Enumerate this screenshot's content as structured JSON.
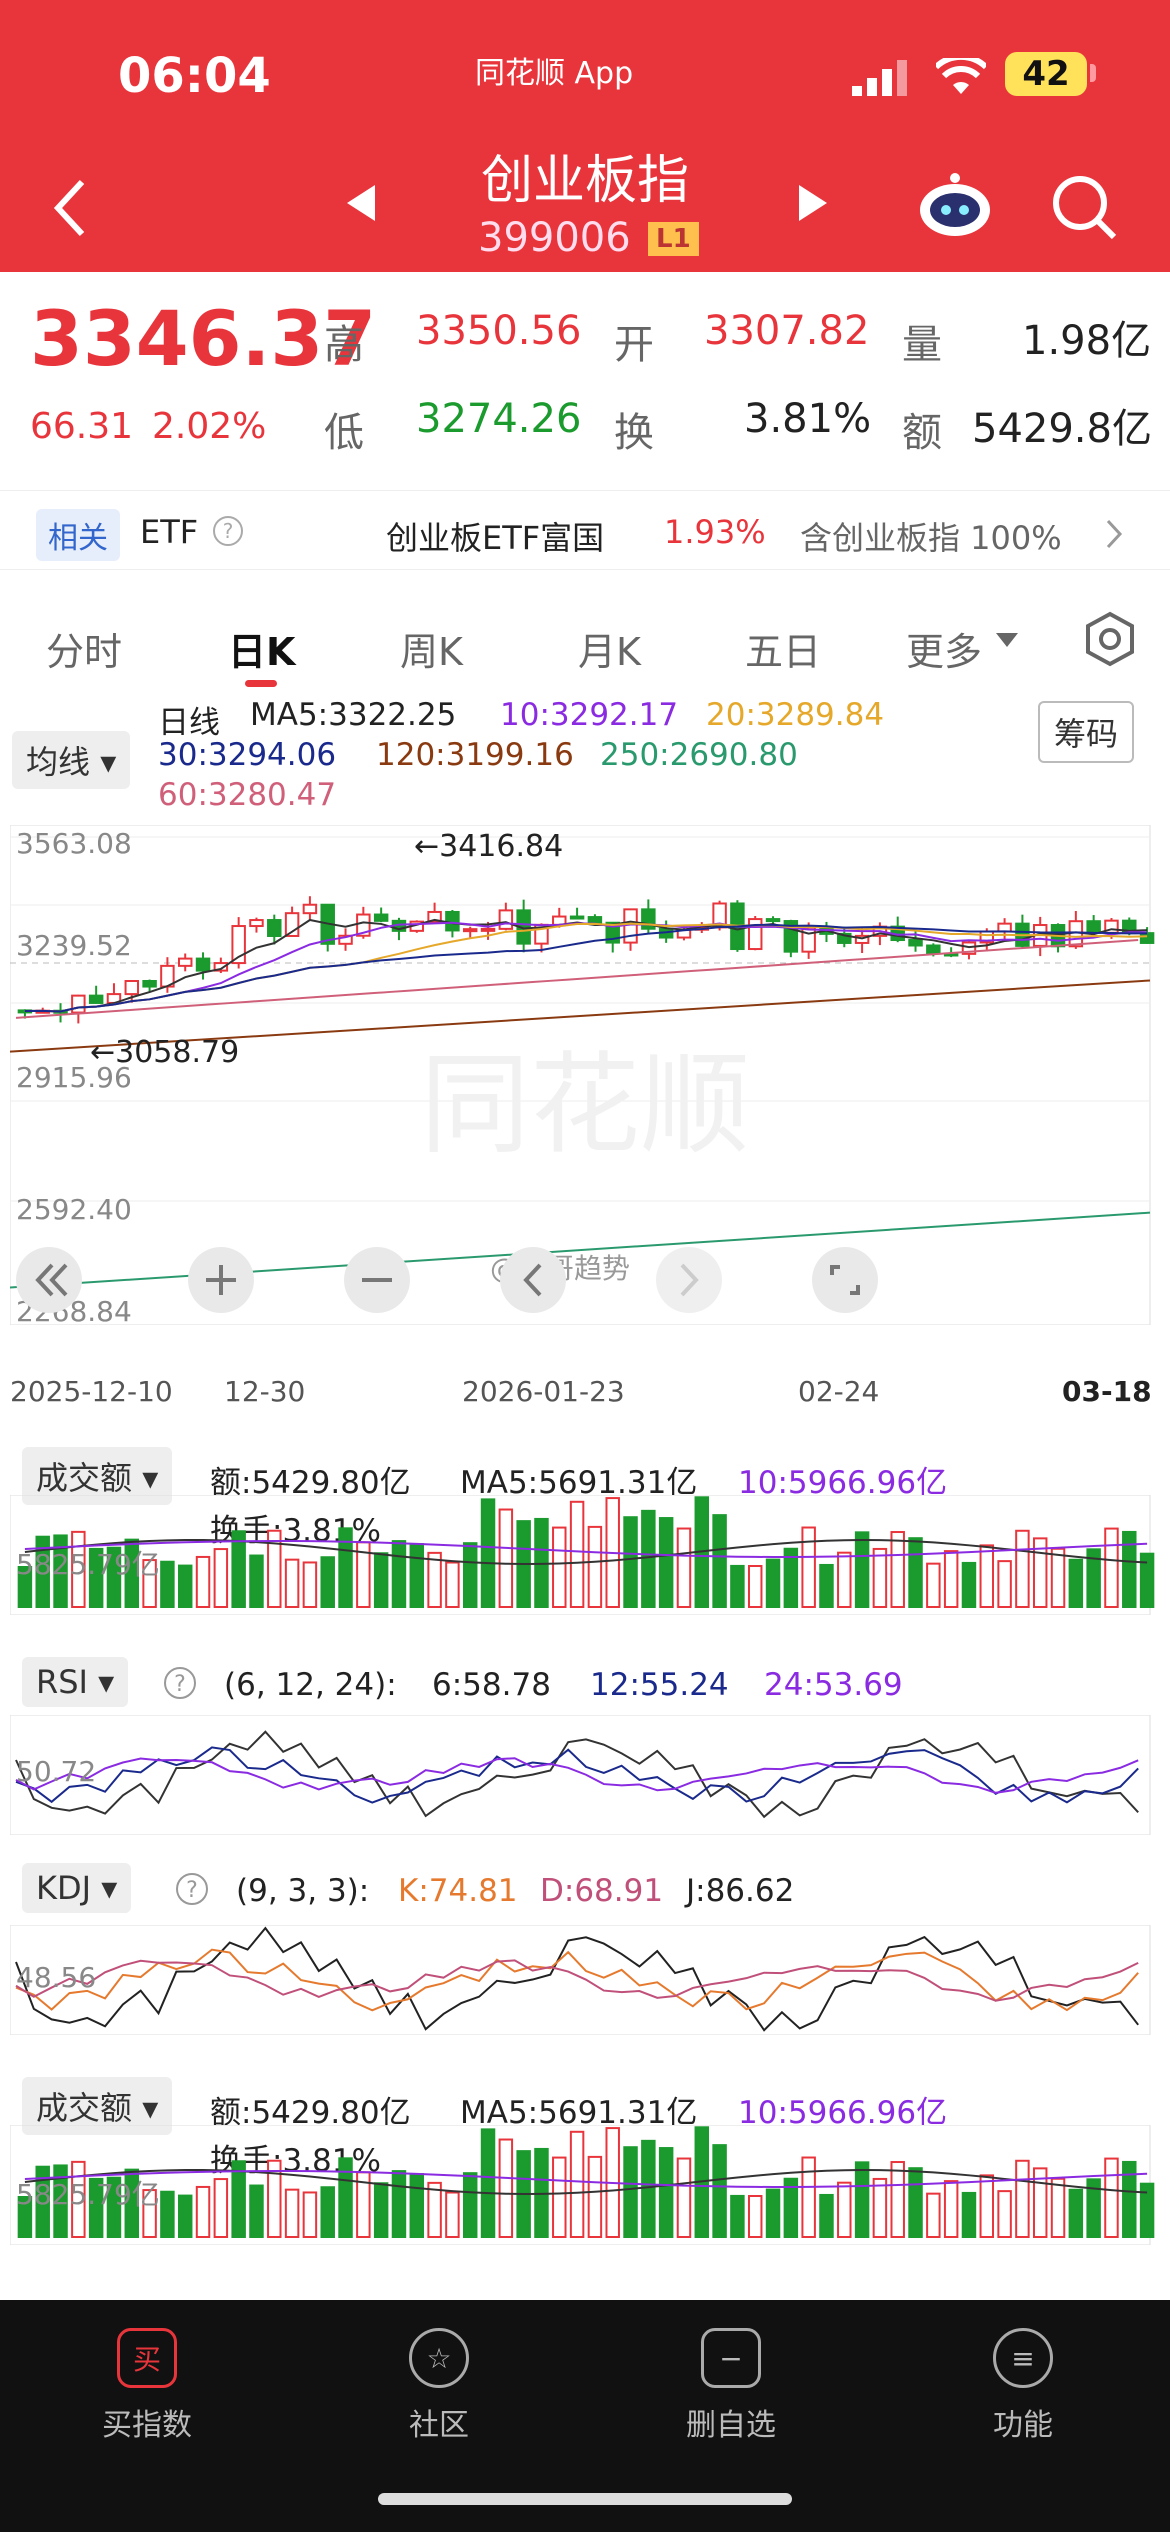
{
  "status": {
    "time": "06:04",
    "app": "同花顺 App",
    "battery": "42"
  },
  "nav": {
    "title": "创业板指",
    "code": "399006",
    "level": "L1"
  },
  "quote": {
    "price": "3346.37",
    "change": "66.31",
    "pct": "2.02%",
    "high_label": "高",
    "high": "3350.56",
    "open_label": "开",
    "open": "3307.82",
    "vol_label": "量",
    "vol": "1.98亿",
    "low_label": "低",
    "low": "3274.26",
    "turn_label": "换",
    "turn": "3.81%",
    "amt_label": "额",
    "amt": "5429.8亿"
  },
  "etf": {
    "tag": "相关",
    "label": "ETF",
    "name": "创业板ETF富国",
    "pct": "1.93%",
    "index_text": "含创业板指 100%"
  },
  "tabs": [
    "分时",
    "日K",
    "周K",
    "月K",
    "五日",
    "更多"
  ],
  "kline": {
    "indicator": "均线",
    "period": "日线",
    "ma5": "MA5:3322.25",
    "ma10": "10:3292.17",
    "ma20": "20:3289.84",
    "ma30": "30:3294.06",
    "ma120": "120:3199.16",
    "ma250": "250:2690.80",
    "ma60": "60:3280.47",
    "chip_button": "筹码",
    "high_mark": "←3416.84",
    "low_mark": "←3058.79",
    "y_ticks": [
      "3563.08",
      "3239.52",
      "2915.96",
      "2592.40",
      "2268.84"
    ],
    "x_ticks": [
      "2025-12-10",
      "12-30",
      "2026-01-23",
      "02-24",
      "03-18"
    ],
    "watermark": "同花顺",
    "weibo": "@峰哥趋势"
  },
  "volume1": {
    "label": "成交额",
    "amt": "额:5429.80亿",
    "ma5": "MA5:5691.31亿",
    "ma10": "10:5966.96亿",
    "turn": "换手:3.81%",
    "axis": "5825.79亿"
  },
  "rsi": {
    "label": "RSI",
    "params": "(6, 12, 24):",
    "v6": "6:58.78",
    "v12": "12:55.24",
    "v24": "24:53.69",
    "axis": "50.72"
  },
  "kdj": {
    "label": "KDJ",
    "params": "(9, 3, 3):",
    "k": "K:74.81",
    "d": "D:68.91",
    "j": "J:86.62",
    "axis": "48.56"
  },
  "volume2": {
    "label": "成交额",
    "amt": "额:5429.80亿",
    "ma5": "MA5:5691.31亿",
    "ma10": "10:5966.96亿",
    "turn": "换手:3.81%",
    "axis": "5825.79亿"
  },
  "bottom": [
    "买指数",
    "社区",
    "删自选",
    "功能"
  ],
  "colors": {
    "up": "#e8353c",
    "down": "#1b9a2e",
    "header": "#e8353c"
  }
}
